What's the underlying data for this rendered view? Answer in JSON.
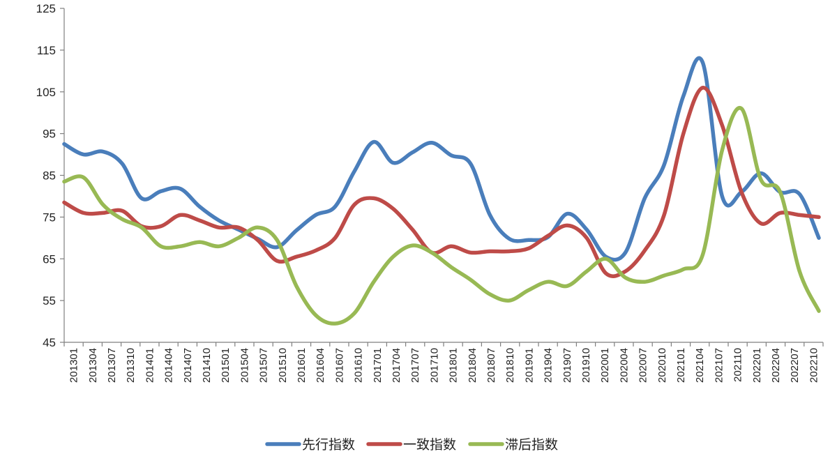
{
  "chart_data": {
    "type": "line",
    "title": "",
    "xlabel": "",
    "ylabel": "",
    "ylim": [
      45,
      125
    ],
    "yticks": [
      45,
      55,
      65,
      75,
      85,
      95,
      105,
      115,
      125
    ],
    "grid": false,
    "legend_position": "bottom-center",
    "x_tick_labels": [
      "201301",
      "201304",
      "201307",
      "201310",
      "201401",
      "201404",
      "201407",
      "201410",
      "201501",
      "201504",
      "201507",
      "201510",
      "201601",
      "201604",
      "201607",
      "201610",
      "201701",
      "201704",
      "201707",
      "201710",
      "201801",
      "201804",
      "201807",
      "201810",
      "201901",
      "201904",
      "201907",
      "201910",
      "202001",
      "202004",
      "202007",
      "202010",
      "202101",
      "202104",
      "202107",
      "202110",
      "202201",
      "202204",
      "202207",
      "202210"
    ],
    "series": [
      {
        "name": "先行指数",
        "color": "#4a7ebb",
        "values": [
          92.5,
          90.0,
          90.7,
          87.8,
          79.5,
          81.2,
          81.8,
          77.5,
          74.2,
          72.0,
          69.8,
          67.8,
          71.8,
          75.5,
          77.5,
          86.0,
          93.0,
          88.0,
          90.5,
          92.8,
          89.8,
          87.8,
          75.5,
          69.8,
          69.5,
          70.2,
          75.8,
          72.0,
          65.5,
          66.5,
          79.5,
          87.5,
          104.0,
          112.0,
          80.0,
          81.0,
          85.5,
          81.0,
          80.5,
          70.0
        ]
      },
      {
        "name": "一致指数",
        "color": "#be4b48",
        "values": [
          78.5,
          76.0,
          76.0,
          76.5,
          72.8,
          72.8,
          75.5,
          74.2,
          72.5,
          72.5,
          69.5,
          64.5,
          65.5,
          67.0,
          70.0,
          78.0,
          79.5,
          77.0,
          72.0,
          66.5,
          68.0,
          66.5,
          66.8,
          66.8,
          67.5,
          70.5,
          73.0,
          70.0,
          61.5,
          62.0,
          67.0,
          75.5,
          95.0,
          106.0,
          97.0,
          81.0,
          73.5,
          76.0,
          75.5,
          75.0
        ]
      },
      {
        "name": "滞后指数",
        "color": "#98b954",
        "values": [
          83.5,
          84.5,
          78.0,
          74.5,
          72.5,
          68.0,
          68.0,
          69.0,
          68.0,
          70.0,
          72.5,
          69.5,
          58.5,
          51.5,
          49.5,
          52.0,
          59.5,
          65.5,
          68.2,
          66.5,
          63.0,
          60.0,
          56.5,
          55.0,
          57.5,
          59.5,
          58.5,
          62.0,
          65.0,
          60.5,
          59.5,
          61.0,
          62.5,
          66.0,
          91.0,
          101.0,
          84.0,
          81.0,
          62.0,
          52.5
        ]
      }
    ]
  }
}
